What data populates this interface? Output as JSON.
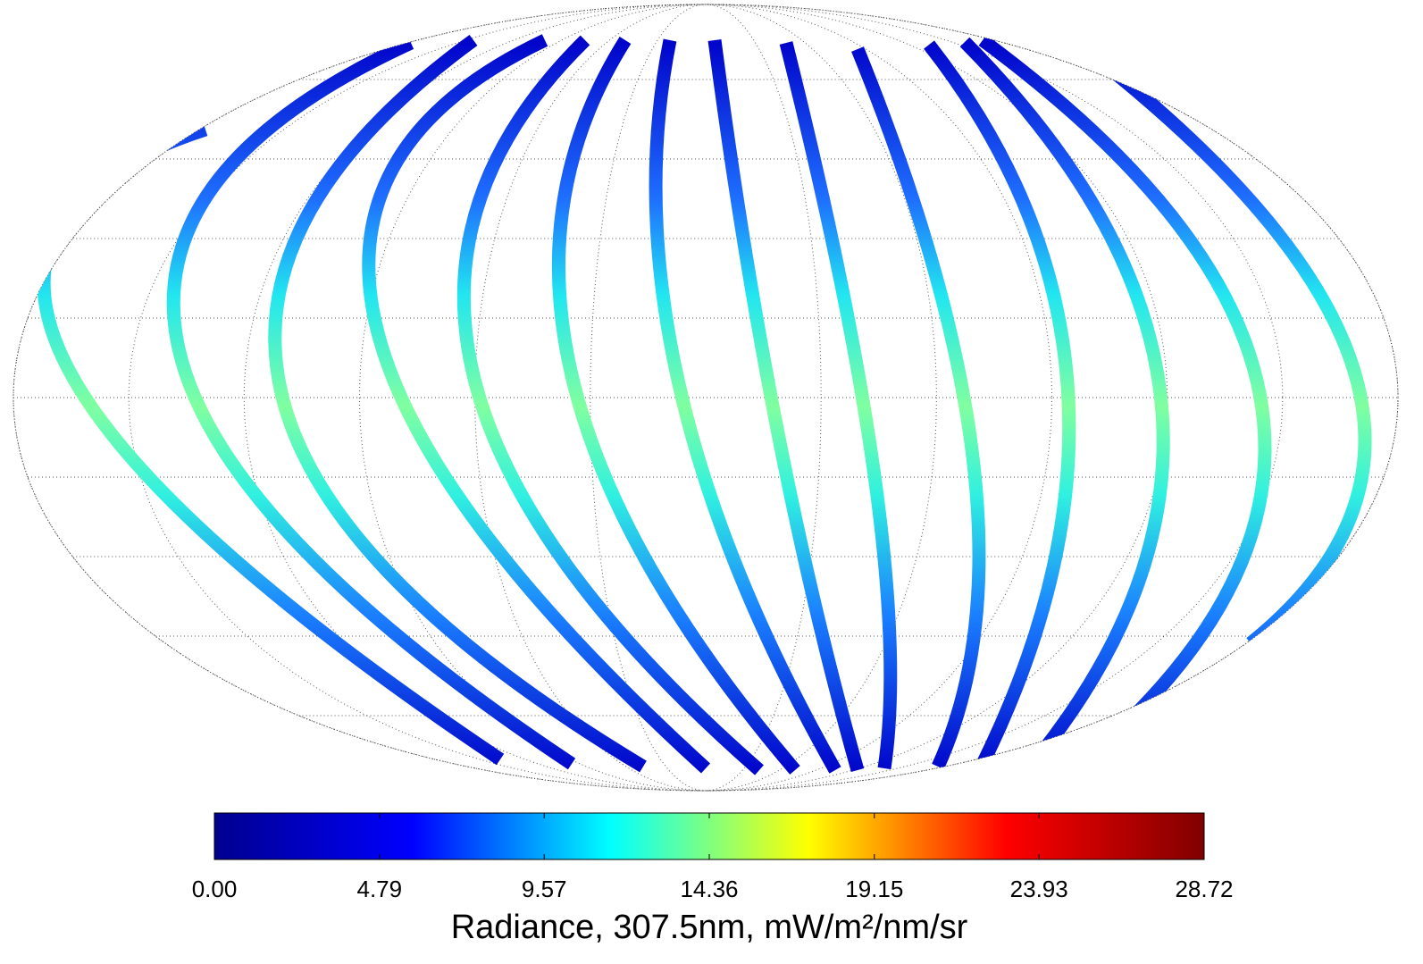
{
  "colorbar": {
    "label": "Radiance, 307.5nm, mW/m²/nm/sr",
    "lim": [
      0,
      28.72
    ],
    "ticks": [
      {
        "value": 0,
        "label": "0.00"
      },
      {
        "value": 4.79,
        "label": "4.79"
      },
      {
        "value": 9.57,
        "label": "9.57"
      },
      {
        "value": 14.36,
        "label": "14.36"
      },
      {
        "value": 19.15,
        "label": "19.15"
      },
      {
        "value": 23.93,
        "label": "23.93"
      },
      {
        "value": 28.72,
        "label": "28.72"
      }
    ],
    "colors": [
      "#00008f",
      "#0000ff",
      "#00ffff",
      "#ffff00",
      "#ff0000",
      "#800000"
    ]
  }
}
